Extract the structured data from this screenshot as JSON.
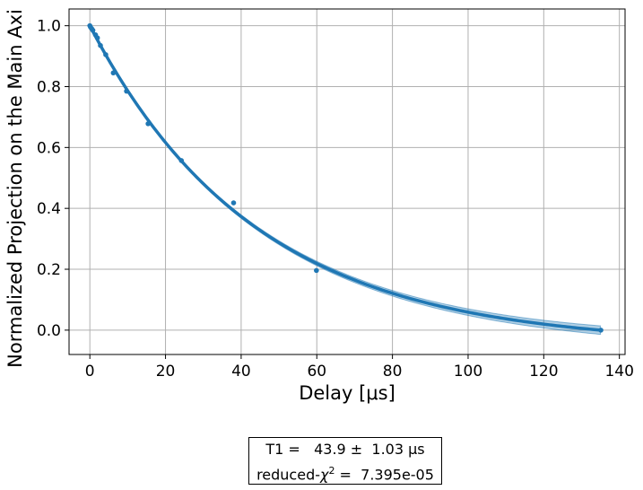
{
  "chart_data": {
    "type": "scatter",
    "xlabel": "Delay [μs]",
    "ylabel": "Normalized Projection on the Main Axi",
    "xlim": [
      -5.5,
      141.5
    ],
    "ylim": [
      -0.08,
      1.055
    ],
    "xticks": [
      0,
      20,
      40,
      60,
      80,
      100,
      120,
      140
    ],
    "yticks": [
      0.0,
      0.2,
      0.4,
      0.6,
      0.8,
      1.0
    ],
    "xtick_labels": [
      "0",
      "20",
      "40",
      "60",
      "80",
      "100",
      "120",
      "140"
    ],
    "ytick_labels": [
      "0.0",
      "0.2",
      "0.4",
      "0.6",
      "0.8",
      "1.0"
    ],
    "grid": true,
    "color": "#1f77b4",
    "points": [
      {
        "x": 0.0,
        "y": 1.0
      },
      {
        "x": 0.2,
        "y": 0.995
      },
      {
        "x": 0.5,
        "y": 0.99
      },
      {
        "x": 0.8,
        "y": 0.985
      },
      {
        "x": 1.5,
        "y": 0.97
      },
      {
        "x": 2.0,
        "y": 0.96
      },
      {
        "x": 2.8,
        "y": 0.935
      },
      {
        "x": 4.2,
        "y": 0.905
      },
      {
        "x": 6.2,
        "y": 0.845
      },
      {
        "x": 9.7,
        "y": 0.785
      },
      {
        "x": 15.4,
        "y": 0.678
      },
      {
        "x": 24.2,
        "y": 0.557
      },
      {
        "x": 38.0,
        "y": 0.418
      },
      {
        "x": 59.9,
        "y": 0.196
      },
      {
        "x": 135.1,
        "y": 0.0
      }
    ],
    "fit": {
      "model": "exponential decay",
      "T1": 43.9,
      "T1_err": 1.03,
      "reduced_chi2": "7.395e-05",
      "x_end": 135
    }
  },
  "fit_box": {
    "line1": "T1 =   43.9 ±  1.03 μs",
    "line2_prefix": "reduced-",
    "chi": "χ",
    "chi_sup": "2",
    "line2_suffix": " =  7.395e-05"
  }
}
